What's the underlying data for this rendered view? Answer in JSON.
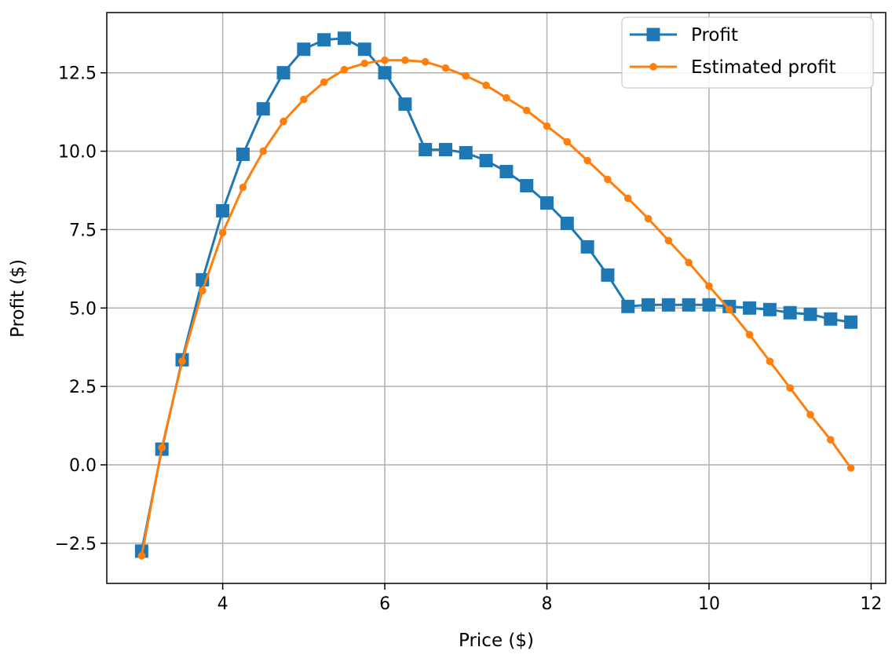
{
  "chart_data": {
    "type": "line",
    "title": "",
    "xlabel": "Price ($)",
    "ylabel": "Profit ($)",
    "xlim": [
      2.57,
      12.18
    ],
    "ylim": [
      -3.78,
      14.42
    ],
    "xticks": [
      4,
      6,
      8,
      10,
      12
    ],
    "xtick_labels": [
      "4",
      "6",
      "8",
      "10",
      "12"
    ],
    "yticks": [
      -2.5,
      0.0,
      2.5,
      5.0,
      7.5,
      10.0,
      12.5
    ],
    "ytick_labels": [
      "−2.5",
      "0.0",
      "2.5",
      "5.0",
      "7.5",
      "10.0",
      "12.5"
    ],
    "grid": true,
    "legend_position": "top-right",
    "series": [
      {
        "name": "Profit",
        "color": "#1f77b4",
        "marker": "square",
        "x": [
          3.0,
          3.25,
          3.5,
          3.75,
          4.0,
          4.25,
          4.5,
          4.75,
          5.0,
          5.25,
          5.5,
          5.75,
          6.0,
          6.25,
          6.5,
          6.75,
          7.0,
          7.25,
          7.5,
          7.75,
          8.0,
          8.25,
          8.5,
          8.75,
          9.0,
          9.25,
          9.5,
          9.75,
          10.0,
          10.25,
          10.5,
          10.75,
          11.0,
          11.25,
          11.5,
          11.75
        ],
        "y": [
          -2.75,
          0.5,
          3.35,
          5.9,
          8.1,
          9.9,
          11.35,
          12.5,
          13.25,
          13.55,
          13.6,
          13.25,
          12.5,
          11.5,
          10.05,
          10.05,
          9.95,
          9.7,
          9.35,
          8.9,
          8.35,
          7.7,
          6.95,
          6.05,
          5.05,
          5.1,
          5.1,
          5.1,
          5.1,
          5.05,
          5.0,
          4.95,
          4.85,
          4.8,
          4.65,
          4.55
        ]
      },
      {
        "name": "Estimated profit",
        "color": "#ff7f0e",
        "marker": "circle",
        "x": [
          3.0,
          3.25,
          3.5,
          3.75,
          4.0,
          4.25,
          4.5,
          4.75,
          5.0,
          5.25,
          5.5,
          5.75,
          6.0,
          6.25,
          6.5,
          6.75,
          7.0,
          7.25,
          7.5,
          7.75,
          8.0,
          8.25,
          8.5,
          8.75,
          9.0,
          9.25,
          9.5,
          9.75,
          10.0,
          10.25,
          10.5,
          10.75,
          11.0,
          11.25,
          11.5,
          11.75
        ],
        "y": [
          -2.9,
          0.55,
          3.3,
          5.55,
          7.4,
          8.85,
          10.0,
          10.95,
          11.65,
          12.2,
          12.6,
          12.8,
          12.9,
          12.9,
          12.85,
          12.65,
          12.4,
          12.1,
          11.7,
          11.3,
          10.8,
          10.3,
          9.7,
          9.1,
          8.5,
          7.85,
          7.15,
          6.45,
          5.7,
          4.95,
          4.15,
          3.3,
          2.45,
          1.6,
          0.8,
          -0.1
        ]
      }
    ]
  }
}
